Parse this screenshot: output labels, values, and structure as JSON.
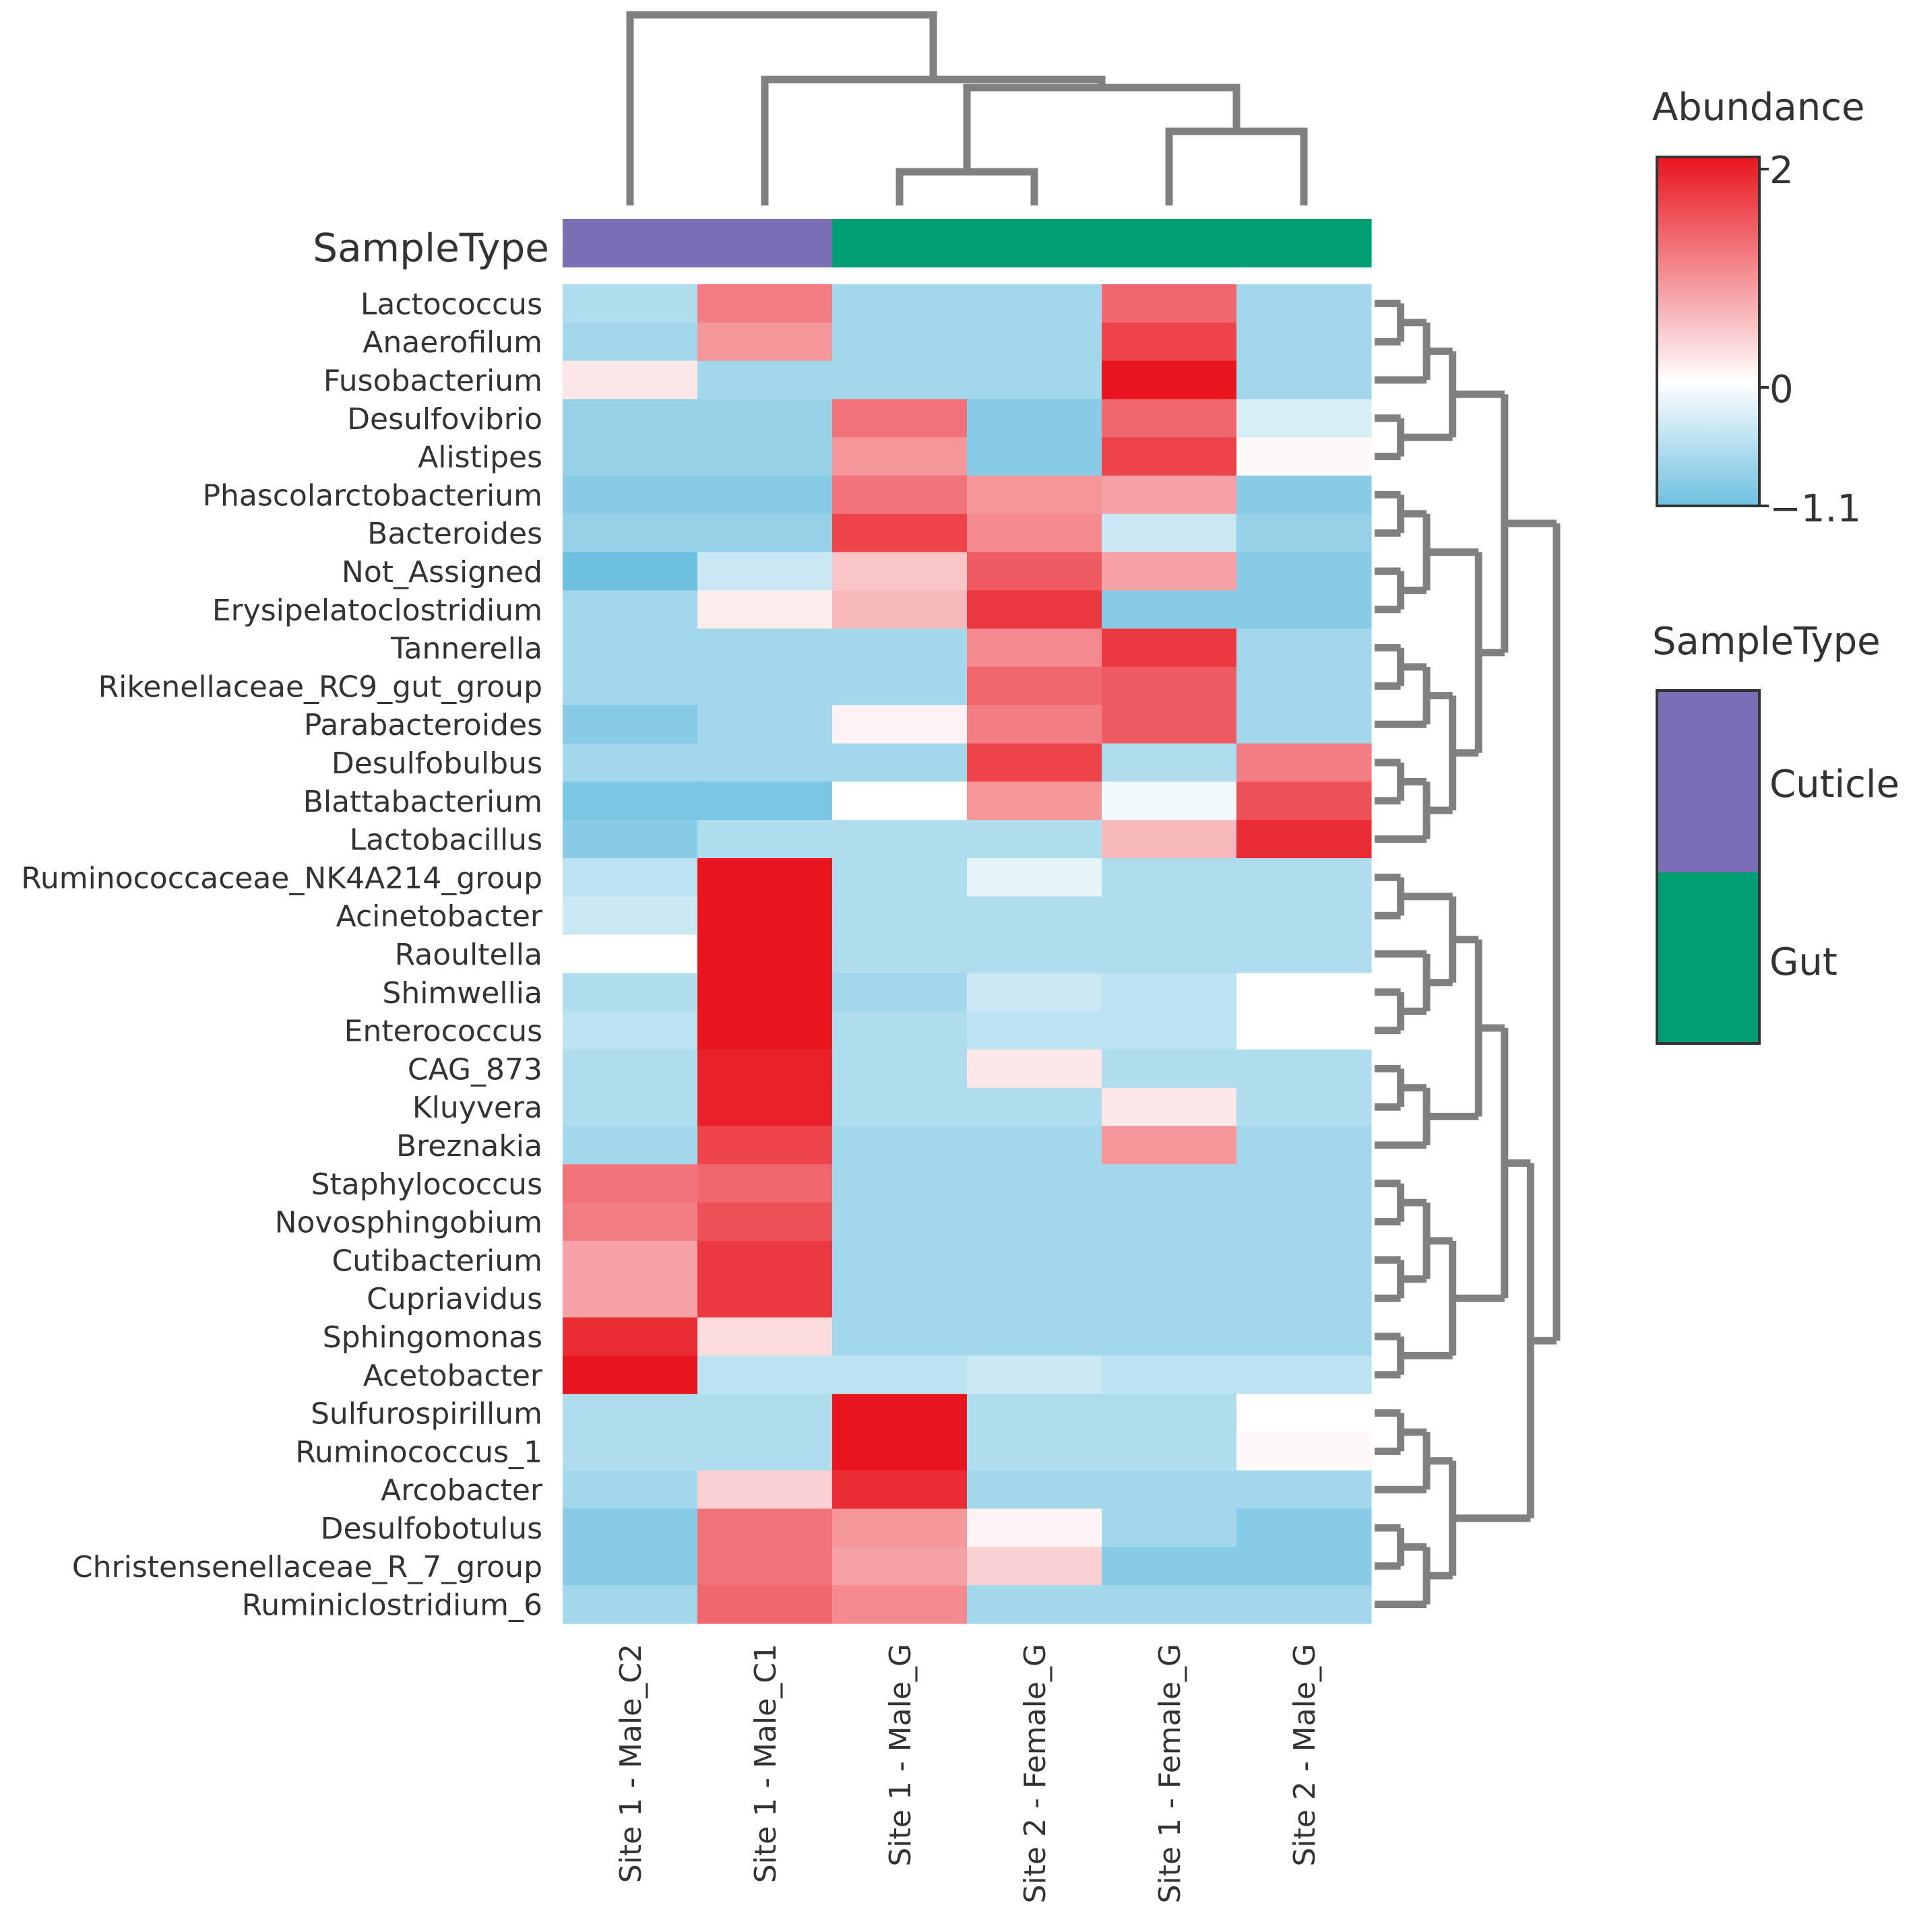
{
  "chart_data": {
    "type": "heatmap",
    "title": "",
    "columns": [
      "Site 1 - Male_C2",
      "Site 1 - Male_C1",
      "Site 1 - Male_G",
      "Site 2 - Female_G",
      "Site 1 - Female_G",
      "Site 2 - Male_G"
    ],
    "rows": [
      "Lactococcus",
      "Anaerofilum",
      "Fusobacterium",
      "Desulfovibrio",
      "Alistipes",
      "Phascolarctobacterium",
      "Bacteroides",
      "Not_Assigned",
      "Erysipelatoclostridium",
      "Tannerella",
      "Rikenellaceae_RC9_gut_group",
      "Parabacteroides",
      "Desulfobulbus",
      "Blattabacterium",
      "Lactobacillus",
      "Ruminococcaceae_NK4A214_group",
      "Acinetobacter",
      "Raoultella",
      "Shimwellia",
      "Enterococcus",
      "CAG_873",
      "Kluyvera",
      "Breznakia",
      "Staphylococcus",
      "Novosphingobium",
      "Cutibacterium",
      "Cupriavidus",
      "Sphingomonas",
      "Acetobacter",
      "Sulfurospirillum",
      "Ruminococcus_1",
      "Arcobacter",
      "Desulfobotulus",
      "Christensenellaceae_R_7_group",
      "Ruminiclostridium_6"
    ],
    "values": [
      [
        -0.6,
        1.1,
        -0.7,
        -0.7,
        1.3,
        -0.7
      ],
      [
        -0.7,
        0.9,
        -0.7,
        -0.7,
        1.6,
        -0.7
      ],
      [
        0.2,
        -0.7,
        -0.7,
        -0.7,
        2.0,
        -0.7
      ],
      [
        -0.8,
        -0.8,
        1.2,
        -0.9,
        1.3,
        -0.3
      ],
      [
        -0.8,
        -0.8,
        0.9,
        -0.9,
        1.6,
        0.05
      ],
      [
        -0.9,
        -0.9,
        1.2,
        0.9,
        0.8,
        -0.9
      ],
      [
        -0.8,
        -0.8,
        1.6,
        1.0,
        -0.4,
        -0.8
      ],
      [
        -1.1,
        -0.4,
        0.5,
        1.4,
        0.8,
        -0.9
      ],
      [
        -0.7,
        0.15,
        0.6,
        1.7,
        -0.9,
        -0.9
      ],
      [
        -0.7,
        -0.7,
        -0.7,
        1.0,
        1.7,
        -0.7
      ],
      [
        -0.7,
        -0.7,
        -0.7,
        1.3,
        1.4,
        -0.7
      ],
      [
        -0.9,
        -0.7,
        0.1,
        1.1,
        1.4,
        -0.7
      ],
      [
        -0.7,
        -0.7,
        -0.7,
        1.6,
        -0.6,
        1.1
      ],
      [
        -1.0,
        -1.0,
        0.0,
        0.9,
        -0.1,
        1.5
      ],
      [
        -0.9,
        -0.6,
        -0.6,
        -0.6,
        0.6,
        1.8
      ],
      [
        -0.5,
        2.0,
        -0.6,
        -0.2,
        -0.6,
        -0.6
      ],
      [
        -0.4,
        2.0,
        -0.6,
        -0.6,
        -0.6,
        -0.6
      ],
      [
        0.0,
        2.0,
        -0.6,
        -0.6,
        -0.6,
        -0.6
      ],
      [
        -0.6,
        2.0,
        -0.7,
        -0.4,
        -0.5,
        0.0
      ],
      [
        -0.5,
        2.0,
        -0.6,
        -0.5,
        -0.5,
        0.0
      ],
      [
        -0.6,
        1.9,
        -0.6,
        0.2,
        -0.6,
        -0.6
      ],
      [
        -0.6,
        1.9,
        -0.6,
        -0.6,
        0.2,
        -0.6
      ],
      [
        -0.7,
        1.6,
        -0.7,
        -0.7,
        0.9,
        -0.7
      ],
      [
        1.2,
        1.3,
        -0.7,
        -0.7,
        -0.7,
        -0.7
      ],
      [
        1.1,
        1.5,
        -0.7,
        -0.7,
        -0.7,
        -0.7
      ],
      [
        0.8,
        1.7,
        -0.7,
        -0.7,
        -0.7,
        -0.7
      ],
      [
        0.8,
        1.7,
        -0.7,
        -0.7,
        -0.7,
        -0.7
      ],
      [
        1.8,
        0.3,
        -0.7,
        -0.7,
        -0.7,
        -0.7
      ],
      [
        2.0,
        -0.5,
        -0.5,
        -0.4,
        -0.5,
        -0.5
      ],
      [
        -0.6,
        -0.6,
        2.0,
        -0.6,
        -0.6,
        0.0
      ],
      [
        -0.6,
        -0.6,
        2.0,
        -0.6,
        -0.6,
        0.05
      ],
      [
        -0.7,
        0.4,
        1.8,
        -0.7,
        -0.7,
        -0.7
      ],
      [
        -0.9,
        1.2,
        0.9,
        0.1,
        -0.7,
        -0.9
      ],
      [
        -0.9,
        1.2,
        0.8,
        0.4,
        -0.9,
        -0.9
      ],
      [
        -0.7,
        1.3,
        1.0,
        -0.7,
        -0.7,
        -0.7
      ]
    ],
    "range": [
      -1.1,
      2
    ],
    "colorscale": [
      "#6ec0e0",
      "#ffffff",
      "#e8151f"
    ],
    "sample_type_title": "SampleType",
    "sample_types": [
      "Cuticle",
      "Cuticle",
      "Gut",
      "Gut",
      "Gut",
      "Gut"
    ],
    "sample_type_colors": {
      "Cuticle": "#7a6fb6",
      "Gut": "#009e73"
    },
    "legend": {
      "abundance_title": "Abundance",
      "abundance_ticks": [
        "2",
        "0",
        "−1.1"
      ],
      "sampletype_title": "SampleType",
      "sampletype_items": [
        "Cuticle",
        "Gut"
      ]
    },
    "dendrogram_color": "#808080"
  }
}
